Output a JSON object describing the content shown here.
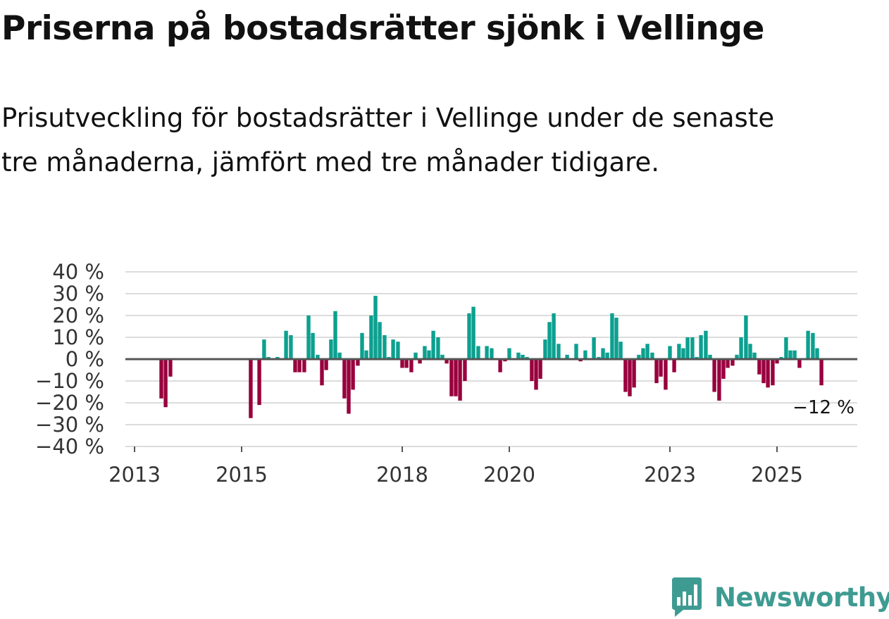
{
  "title": "Priserna på bostadsrätter sjönk i Vellinge",
  "subtitle": "Prisutveckling för bostadsrätter i Vellinge under de senaste tre månaderna, jämfört med tre månader tidigare.",
  "colors": {
    "positive": "#0ca08f",
    "negative": "#98003d",
    "grid": "#dcdcdc",
    "zero_line": "#555555",
    "brand": "#3e9b92"
  },
  "brand": {
    "name": "Newsworthy",
    "icon": "chart-speech-bubble-icon"
  },
  "chart_data": {
    "type": "bar",
    "title": "Priserna på bostadsrätter sjönk i Vellinge",
    "xlabel": "",
    "ylabel": "",
    "ylim": [
      -40,
      40
    ],
    "y_ticks": [
      40,
      30,
      20,
      10,
      0,
      -10,
      -20,
      -30,
      -40
    ],
    "y_tick_labels": [
      "40 %",
      "30 %",
      "20 %",
      "10 %",
      "0 %",
      "−10 %",
      "−20 %",
      "−30 %",
      "−40 %"
    ],
    "x_ticks": [
      2013,
      2015,
      2018,
      2020,
      2023,
      2025
    ],
    "x_tick_labels": [
      "2013",
      "2015",
      "2018",
      "2020",
      "2023",
      "2025"
    ],
    "end_label": "−12 %",
    "series": [
      {
        "name": "Prisutveckling",
        "unit": "%",
        "x": [
          2013.5,
          2013.58,
          2013.67,
          2015.17,
          2015.33,
          2015.42,
          2015.5,
          2015.58,
          2015.67,
          2015.83,
          2015.92,
          2016.0,
          2016.08,
          2016.17,
          2016.25,
          2016.33,
          2016.42,
          2016.5,
          2016.58,
          2016.67,
          2016.75,
          2016.83,
          2016.92,
          2017.0,
          2017.08,
          2017.17,
          2017.25,
          2017.33,
          2017.42,
          2017.5,
          2017.58,
          2017.67,
          2017.75,
          2017.83,
          2017.92,
          2018.0,
          2018.08,
          2018.17,
          2018.25,
          2018.33,
          2018.42,
          2018.5,
          2018.58,
          2018.67,
          2018.75,
          2018.83,
          2018.92,
          2019.0,
          2019.08,
          2019.17,
          2019.25,
          2019.33,
          2019.42,
          2019.5,
          2019.58,
          2019.67,
          2019.75,
          2019.83,
          2019.92,
          2020.0,
          2020.08,
          2020.17,
          2020.25,
          2020.33,
          2020.42,
          2020.5,
          2020.58,
          2020.67,
          2020.75,
          2020.83,
          2020.92,
          2021.0,
          2021.08,
          2021.17,
          2021.25,
          2021.33,
          2021.42,
          2021.5,
          2021.58,
          2021.67,
          2021.75,
          2021.83,
          2021.92,
          2022.0,
          2022.08,
          2022.17,
          2022.25,
          2022.33,
          2022.42,
          2022.5,
          2022.58,
          2022.67,
          2022.75,
          2022.83,
          2022.92,
          2023.0,
          2023.08,
          2023.17,
          2023.25,
          2023.33,
          2023.42,
          2023.5,
          2023.58,
          2023.67,
          2023.75,
          2023.83,
          2023.92,
          2024.0,
          2024.08,
          2024.17,
          2024.25,
          2024.33,
          2024.42,
          2024.5,
          2024.58,
          2024.67,
          2024.75,
          2024.83,
          2024.92,
          2025.0,
          2025.08,
          2025.17,
          2025.25,
          2025.33,
          2025.42,
          2025.58,
          2025.67,
          2025.75,
          2025.83
        ],
        "values": [
          -18,
          -22,
          -8,
          -27,
          -21,
          9,
          1,
          0.5,
          1,
          13,
          11,
          -6,
          -6,
          -6,
          20,
          12,
          2,
          -12,
          -5,
          9,
          22,
          3,
          -18,
          -25,
          -14,
          -3,
          12,
          4,
          20,
          29,
          17,
          11,
          1,
          9,
          8,
          -4,
          -4,
          -6,
          3,
          -2,
          6,
          4,
          13,
          10,
          2,
          -2,
          -17,
          -17,
          -19,
          -10,
          21,
          24,
          6,
          0.5,
          6,
          5,
          0.5,
          -6,
          -1,
          5,
          0.5,
          3,
          2,
          1,
          -10,
          -14,
          -9,
          9,
          17,
          21,
          7,
          0.5,
          2,
          0.5,
          7,
          -1,
          4,
          0.5,
          10,
          1,
          5,
          3,
          21,
          19,
          8,
          -15,
          -17,
          -13,
          2,
          5,
          7,
          3,
          -11,
          -8,
          -14,
          6,
          -6,
          7,
          5,
          10,
          10,
          1,
          11,
          13,
          2,
          -15,
          -19,
          -9,
          -4,
          -3,
          2,
          10,
          20,
          7,
          3,
          -7,
          -11,
          -13,
          -12,
          -2,
          1,
          10,
          4,
          4,
          -4,
          13,
          12,
          5,
          -12
        ]
      }
    ]
  }
}
